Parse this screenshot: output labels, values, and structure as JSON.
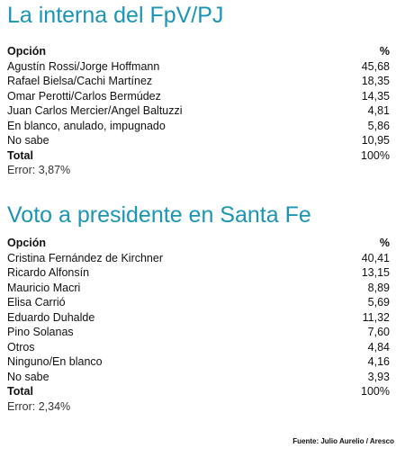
{
  "sections": [
    {
      "title": "La interna del FpV/PJ",
      "header": [
        "Opción",
        "%"
      ],
      "rows": [
        [
          "Agustín Rossi/Jorge Hoffmann",
          "45,68"
        ],
        [
          "Rafael Bielsa/Cachi Martínez",
          "18,35"
        ],
        [
          "Omar Perotti/Carlos Bermúdez",
          "14,35"
        ],
        [
          "Juan Carlos Mercier/Angel Baltuzzi",
          "4,81"
        ],
        [
          "En blanco, anulado, impugnado",
          "5,86"
        ],
        [
          "No sabe",
          "10,95"
        ]
      ],
      "total": [
        "Total",
        "100%"
      ],
      "error": "Error: 3,87%"
    },
    {
      "title": "Voto a presidente en Santa Fe",
      "header": [
        "Opción",
        "%"
      ],
      "rows": [
        [
          "Cristina Fernández de Kirchner",
          "40,41"
        ],
        [
          "Ricardo Alfonsín",
          "13,15"
        ],
        [
          "Mauricio Macri",
          "8,89"
        ],
        [
          "Elisa Carrió",
          "5,69"
        ],
        [
          "Eduardo Duhalde",
          "11,32"
        ],
        [
          "Pino Solanas",
          "7,60"
        ],
        [
          "Otros",
          "4,84"
        ],
        [
          "Ninguno/En blanco",
          "4,16"
        ],
        [
          "No sabe",
          "3,93"
        ]
      ],
      "total": [
        "Total",
        "100%"
      ],
      "error": "Error: 2,34%"
    }
  ],
  "source": "Fuente: Julio Aurelio / Aresco"
}
